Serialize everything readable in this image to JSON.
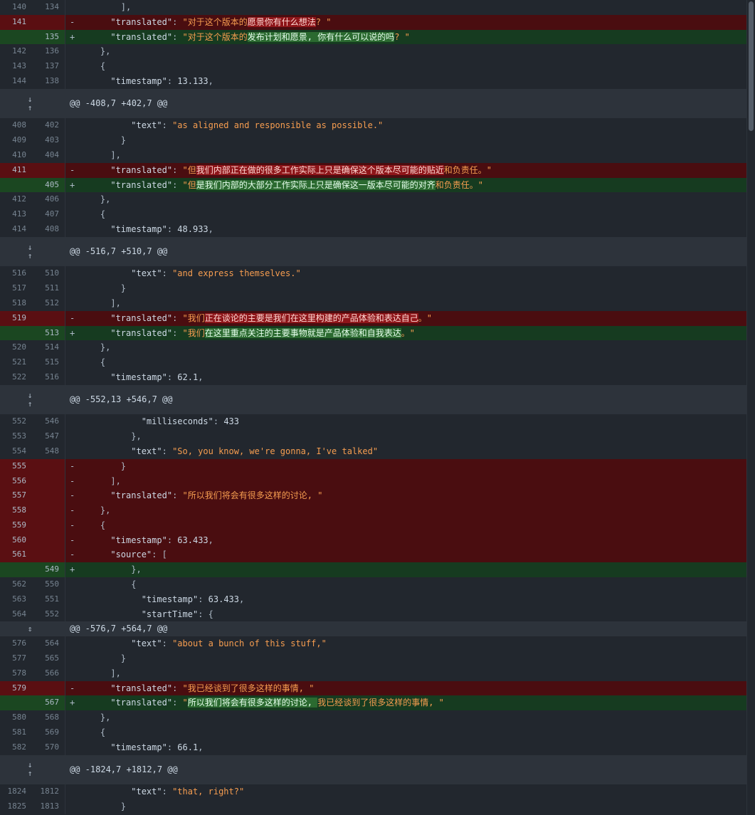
{
  "rows": [
    {
      "type": "ctx",
      "old": "140",
      "new": "134",
      "code": [
        {
          "t": "        ],",
          "c": "punc"
        }
      ]
    },
    {
      "type": "del",
      "old": "141",
      "new": "",
      "sign": "-",
      "code": [
        {
          "t": "      ",
          "c": "punc"
        },
        {
          "t": "\"translated\"",
          "c": "key"
        },
        {
          "t": ": ",
          "c": "punc"
        },
        {
          "t": "\"对于这个版本的",
          "c": "str"
        },
        {
          "t": "愿景你有什么想法",
          "c": "hl-del"
        },
        {
          "t": "? \"",
          "c": "str"
        }
      ]
    },
    {
      "type": "add",
      "old": "",
      "new": "135",
      "sign": "+",
      "code": [
        {
          "t": "      ",
          "c": "punc"
        },
        {
          "t": "\"translated\"",
          "c": "key"
        },
        {
          "t": ": ",
          "c": "punc"
        },
        {
          "t": "\"对于这个版本的",
          "c": "str"
        },
        {
          "t": "发布计划和愿景, 你有什么可以说的吗",
          "c": "hl-add"
        },
        {
          "t": "? \"",
          "c": "str"
        }
      ]
    },
    {
      "type": "ctx",
      "old": "142",
      "new": "136",
      "code": [
        {
          "t": "    },",
          "c": "punc"
        }
      ]
    },
    {
      "type": "ctx",
      "old": "143",
      "new": "137",
      "code": [
        {
          "t": "    {",
          "c": "punc"
        }
      ]
    },
    {
      "type": "ctx",
      "old": "144",
      "new": "138",
      "code": [
        {
          "t": "      ",
          "c": "punc"
        },
        {
          "t": "\"timestamp\"",
          "c": "key"
        },
        {
          "t": ": ",
          "c": "punc"
        },
        {
          "t": "13.133",
          "c": "num"
        },
        {
          "t": ",",
          "c": "punc"
        }
      ]
    },
    {
      "type": "hunk",
      "header": "@@ -408,7 +402,7 @@"
    },
    {
      "type": "ctx",
      "old": "408",
      "new": "402",
      "code": [
        {
          "t": "          ",
          "c": "punc"
        },
        {
          "t": "\"text\"",
          "c": "key"
        },
        {
          "t": ": ",
          "c": "punc"
        },
        {
          "t": "\"as aligned and responsible as possible.\"",
          "c": "str"
        }
      ]
    },
    {
      "type": "ctx",
      "old": "409",
      "new": "403",
      "code": [
        {
          "t": "        }",
          "c": "punc"
        }
      ]
    },
    {
      "type": "ctx",
      "old": "410",
      "new": "404",
      "code": [
        {
          "t": "      ],",
          "c": "punc"
        }
      ]
    },
    {
      "type": "del",
      "old": "411",
      "new": "",
      "sign": "-",
      "code": [
        {
          "t": "      ",
          "c": "punc"
        },
        {
          "t": "\"translated\"",
          "c": "key"
        },
        {
          "t": ": ",
          "c": "punc"
        },
        {
          "t": "\"但",
          "c": "str"
        },
        {
          "t": "我们内部正在做的很多工作实际上只是确保这个版本尽可能的贴近",
          "c": "hl-del"
        },
        {
          "t": "和负责任。\"",
          "c": "str"
        }
      ]
    },
    {
      "type": "add",
      "old": "",
      "new": "405",
      "sign": "+",
      "code": [
        {
          "t": "      ",
          "c": "punc"
        },
        {
          "t": "\"translated\"",
          "c": "key"
        },
        {
          "t": ": ",
          "c": "punc"
        },
        {
          "t": "\"但",
          "c": "str"
        },
        {
          "t": "是我们内部的大部分工作实际上只是确保这一版本尽可能的对齐",
          "c": "hl-add"
        },
        {
          "t": "和负责任。\"",
          "c": "str"
        }
      ]
    },
    {
      "type": "ctx",
      "old": "412",
      "new": "406",
      "code": [
        {
          "t": "    },",
          "c": "punc"
        }
      ]
    },
    {
      "type": "ctx",
      "old": "413",
      "new": "407",
      "code": [
        {
          "t": "    {",
          "c": "punc"
        }
      ]
    },
    {
      "type": "ctx",
      "old": "414",
      "new": "408",
      "code": [
        {
          "t": "      ",
          "c": "punc"
        },
        {
          "t": "\"timestamp\"",
          "c": "key"
        },
        {
          "t": ": ",
          "c": "punc"
        },
        {
          "t": "48.933",
          "c": "num"
        },
        {
          "t": ",",
          "c": "punc"
        }
      ]
    },
    {
      "type": "hunk",
      "header": "@@ -516,7 +510,7 @@"
    },
    {
      "type": "ctx",
      "old": "516",
      "new": "510",
      "code": [
        {
          "t": "          ",
          "c": "punc"
        },
        {
          "t": "\"text\"",
          "c": "key"
        },
        {
          "t": ": ",
          "c": "punc"
        },
        {
          "t": "\"and express themselves.\"",
          "c": "str"
        }
      ]
    },
    {
      "type": "ctx",
      "old": "517",
      "new": "511",
      "code": [
        {
          "t": "        }",
          "c": "punc"
        }
      ]
    },
    {
      "type": "ctx",
      "old": "518",
      "new": "512",
      "code": [
        {
          "t": "      ],",
          "c": "punc"
        }
      ]
    },
    {
      "type": "del",
      "old": "519",
      "new": "",
      "sign": "-",
      "code": [
        {
          "t": "      ",
          "c": "punc"
        },
        {
          "t": "\"translated\"",
          "c": "key"
        },
        {
          "t": ": ",
          "c": "punc"
        },
        {
          "t": "\"我们",
          "c": "str"
        },
        {
          "t": "正在谈论的主要是我们在这里构建的产品体验和表达自己",
          "c": "hl-del"
        },
        {
          "t": "。\"",
          "c": "str"
        }
      ]
    },
    {
      "type": "add",
      "old": "",
      "new": "513",
      "sign": "+",
      "code": [
        {
          "t": "      ",
          "c": "punc"
        },
        {
          "t": "\"translated\"",
          "c": "key"
        },
        {
          "t": ": ",
          "c": "punc"
        },
        {
          "t": "\"我们",
          "c": "str"
        },
        {
          "t": "在这里重点关注的主要事物就是产品体验和自我表达",
          "c": "hl-add"
        },
        {
          "t": "。\"",
          "c": "str"
        }
      ]
    },
    {
      "type": "ctx",
      "old": "520",
      "new": "514",
      "code": [
        {
          "t": "    },",
          "c": "punc"
        }
      ]
    },
    {
      "type": "ctx",
      "old": "521",
      "new": "515",
      "code": [
        {
          "t": "    {",
          "c": "punc"
        }
      ]
    },
    {
      "type": "ctx",
      "old": "522",
      "new": "516",
      "code": [
        {
          "t": "      ",
          "c": "punc"
        },
        {
          "t": "\"timestamp\"",
          "c": "key"
        },
        {
          "t": ": ",
          "c": "punc"
        },
        {
          "t": "62.1",
          "c": "num"
        },
        {
          "t": ",",
          "c": "punc"
        }
      ]
    },
    {
      "type": "hunk",
      "header": "@@ -552,13 +546,7 @@"
    },
    {
      "type": "ctx",
      "old": "552",
      "new": "546",
      "code": [
        {
          "t": "            ",
          "c": "punc"
        },
        {
          "t": "\"milliseconds\"",
          "c": "key"
        },
        {
          "t": ": ",
          "c": "punc"
        },
        {
          "t": "433",
          "c": "num"
        }
      ]
    },
    {
      "type": "ctx",
      "old": "553",
      "new": "547",
      "code": [
        {
          "t": "          },",
          "c": "punc"
        }
      ]
    },
    {
      "type": "ctx",
      "old": "554",
      "new": "548",
      "code": [
        {
          "t": "          ",
          "c": "punc"
        },
        {
          "t": "\"text\"",
          "c": "key"
        },
        {
          "t": ": ",
          "c": "punc"
        },
        {
          "t": "\"So, you know, we're gonna, I've talked\"",
          "c": "str"
        }
      ]
    },
    {
      "type": "del",
      "old": "555",
      "new": "",
      "sign": "-",
      "code": [
        {
          "t": "        }",
          "c": "punc"
        }
      ]
    },
    {
      "type": "del",
      "old": "556",
      "new": "",
      "sign": "-",
      "code": [
        {
          "t": "      ],",
          "c": "punc"
        }
      ]
    },
    {
      "type": "del",
      "old": "557",
      "new": "",
      "sign": "-",
      "code": [
        {
          "t": "      ",
          "c": "punc"
        },
        {
          "t": "\"translated\"",
          "c": "key"
        },
        {
          "t": ": ",
          "c": "punc"
        },
        {
          "t": "\"所以我们将会有很多这样的讨论, \"",
          "c": "str"
        }
      ]
    },
    {
      "type": "del",
      "old": "558",
      "new": "",
      "sign": "-",
      "code": [
        {
          "t": "    },",
          "c": "punc"
        }
      ]
    },
    {
      "type": "del",
      "old": "559",
      "new": "",
      "sign": "-",
      "code": [
        {
          "t": "    {",
          "c": "punc"
        }
      ]
    },
    {
      "type": "del",
      "old": "560",
      "new": "",
      "sign": "-",
      "code": [
        {
          "t": "      ",
          "c": "punc"
        },
        {
          "t": "\"timestamp\"",
          "c": "key"
        },
        {
          "t": ": ",
          "c": "punc"
        },
        {
          "t": "63.433",
          "c": "num"
        },
        {
          "t": ",",
          "c": "punc"
        }
      ]
    },
    {
      "type": "del",
      "old": "561",
      "new": "",
      "sign": "-",
      "code": [
        {
          "t": "      ",
          "c": "punc"
        },
        {
          "t": "\"source\"",
          "c": "key"
        },
        {
          "t": ": [",
          "c": "punc"
        }
      ]
    },
    {
      "type": "add",
      "old": "",
      "new": "549",
      "sign": "+",
      "code": [
        {
          "t": "          },",
          "c": "punc"
        }
      ]
    },
    {
      "type": "ctx",
      "old": "562",
      "new": "550",
      "code": [
        {
          "t": "          {",
          "c": "punc"
        }
      ]
    },
    {
      "type": "ctx",
      "old": "563",
      "new": "551",
      "code": [
        {
          "t": "            ",
          "c": "punc"
        },
        {
          "t": "\"timestamp\"",
          "c": "key"
        },
        {
          "t": ": ",
          "c": "punc"
        },
        {
          "t": "63.433",
          "c": "num"
        },
        {
          "t": ",",
          "c": "punc"
        }
      ]
    },
    {
      "type": "ctx",
      "old": "564",
      "new": "552",
      "code": [
        {
          "t": "            ",
          "c": "punc"
        },
        {
          "t": "\"startTime\"",
          "c": "key"
        },
        {
          "t": ": {",
          "c": "punc"
        }
      ]
    },
    {
      "type": "hunk-small",
      "header": "@@ -576,7 +564,7 @@"
    },
    {
      "type": "ctx",
      "old": "576",
      "new": "564",
      "code": [
        {
          "t": "          ",
          "c": "punc"
        },
        {
          "t": "\"text\"",
          "c": "key"
        },
        {
          "t": ": ",
          "c": "punc"
        },
        {
          "t": "\"about a bunch of this stuff,\"",
          "c": "str"
        }
      ]
    },
    {
      "type": "ctx",
      "old": "577",
      "new": "565",
      "code": [
        {
          "t": "        }",
          "c": "punc"
        }
      ]
    },
    {
      "type": "ctx",
      "old": "578",
      "new": "566",
      "code": [
        {
          "t": "      ],",
          "c": "punc"
        }
      ]
    },
    {
      "type": "del",
      "old": "579",
      "new": "",
      "sign": "-",
      "code": [
        {
          "t": "      ",
          "c": "punc"
        },
        {
          "t": "\"translated\"",
          "c": "key"
        },
        {
          "t": ": ",
          "c": "punc"
        },
        {
          "t": "\"我已经谈到了很多这样的事情, \"",
          "c": "str"
        }
      ]
    },
    {
      "type": "add",
      "old": "",
      "new": "567",
      "sign": "+",
      "code": [
        {
          "t": "      ",
          "c": "punc"
        },
        {
          "t": "\"translated\"",
          "c": "key"
        },
        {
          "t": ": ",
          "c": "punc"
        },
        {
          "t": "\"",
          "c": "str"
        },
        {
          "t": "所以我们将会有很多这样的讨论, ",
          "c": "hl-add"
        },
        {
          "t": "我已经谈到了很多这样的事情, \"",
          "c": "str"
        }
      ]
    },
    {
      "type": "ctx",
      "old": "580",
      "new": "568",
      "code": [
        {
          "t": "    },",
          "c": "punc"
        }
      ]
    },
    {
      "type": "ctx",
      "old": "581",
      "new": "569",
      "code": [
        {
          "t": "    {",
          "c": "punc"
        }
      ]
    },
    {
      "type": "ctx",
      "old": "582",
      "new": "570",
      "code": [
        {
          "t": "      ",
          "c": "punc"
        },
        {
          "t": "\"timestamp\"",
          "c": "key"
        },
        {
          "t": ": ",
          "c": "punc"
        },
        {
          "t": "66.1",
          "c": "num"
        },
        {
          "t": ",",
          "c": "punc"
        }
      ]
    },
    {
      "type": "hunk",
      "header": "@@ -1824,7 +1812,7 @@"
    },
    {
      "type": "ctx",
      "old": "1824",
      "new": "1812",
      "code": [
        {
          "t": "          ",
          "c": "punc"
        },
        {
          "t": "\"text\"",
          "c": "key"
        },
        {
          "t": ": ",
          "c": "punc"
        },
        {
          "t": "\"that, right?\"",
          "c": "str"
        }
      ]
    },
    {
      "type": "ctx",
      "old": "1825",
      "new": "1813",
      "code": [
        {
          "t": "        }",
          "c": "punc"
        }
      ]
    }
  ],
  "expand_icons": {
    "up": "↑",
    "down": "↓",
    "both": "⇕"
  }
}
